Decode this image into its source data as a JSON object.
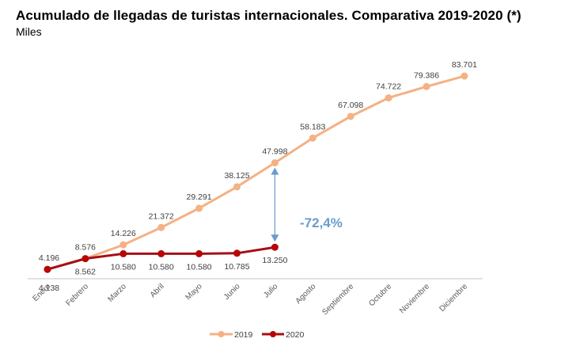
{
  "chart_data": {
    "type": "line",
    "title": "Acumulado de llegadas de turistas internacionales. Comparativa 2019-2020 (*)",
    "subtitle": "Miles",
    "xlabel": "",
    "ylabel": "",
    "ylim": [
      0,
      90000
    ],
    "grid": false,
    "legend_position": "bottom-center",
    "categories": [
      "Enero",
      "Febrero",
      "Marzo",
      "Abril",
      "Mayo",
      "Junio",
      "Julio",
      "Agosto",
      "Septiembre",
      "Octubre",
      "Noviembre",
      "Diciembre"
    ],
    "series": [
      {
        "name": "2019",
        "color": "#f4b183",
        "values": [
          4196,
          8576,
          14226,
          21372,
          29291,
          38125,
          47998,
          58183,
          67098,
          74722,
          79386,
          83701
        ],
        "labels": [
          "4.196",
          "8.576",
          "14.226",
          "21.372",
          "29.291",
          "38.125",
          "47.998",
          "58.183",
          "67.098",
          "74.722",
          "79.386",
          "83.701"
        ]
      },
      {
        "name": "2020",
        "color": "#a50f15",
        "values": [
          4138,
          8562,
          10580,
          10580,
          10580,
          10785,
          13250
        ],
        "labels": [
          "4.138",
          "8.562",
          "10.580",
          "10.580",
          "10.580",
          "10.785",
          "13.250"
        ]
      }
    ],
    "annotations": [
      {
        "text": "-72,4%",
        "type": "double-arrow",
        "category": "Julio",
        "from_series": "2019",
        "to_series": "2020",
        "color": "#6a9ccd"
      }
    ]
  }
}
